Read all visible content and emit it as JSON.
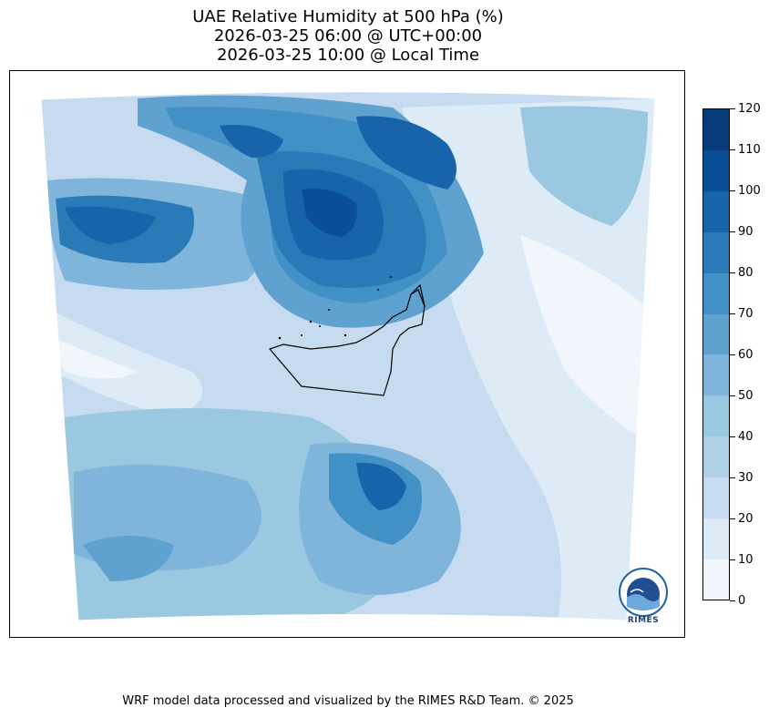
{
  "title": {
    "line1": "UAE Relative Humidity at 500 hPa (%)",
    "line2": "2026-03-25 06:00 @ UTC+00:00",
    "line3": "2026-03-25 10:00 @ Local Time"
  },
  "colorbar": {
    "ticks": [
      "0",
      "10",
      "20",
      "30",
      "40",
      "50",
      "60",
      "70",
      "80",
      "90",
      "100",
      "110",
      "120"
    ],
    "colors": [
      "#f0f6fc",
      "#ddebf7",
      "#c6dbef",
      "#b0d0e7",
      "#9ac8e0",
      "#7fb5da",
      "#5fa2d0",
      "#4291c6",
      "#2a7ab8",
      "#1764ab",
      "#0a4f96",
      "#083b7a"
    ],
    "min": 0,
    "max": 120
  },
  "logo": {
    "text": "RIMES",
    "icon": "rimes-logo-icon"
  },
  "footer": "WRF model data processed and visualized by the RIMES R&D Team. © 2025"
}
